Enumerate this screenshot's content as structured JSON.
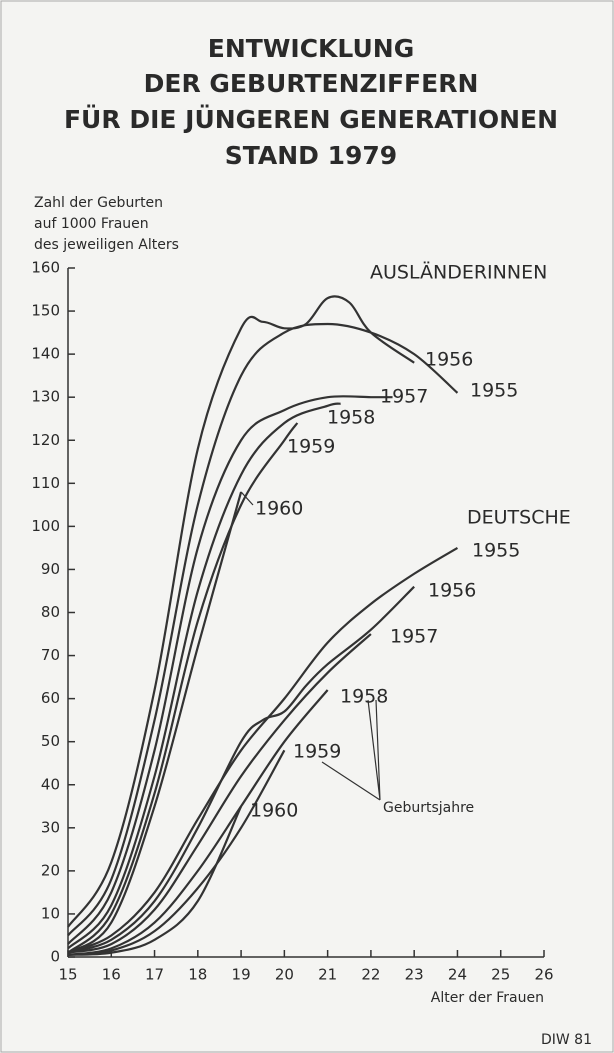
{
  "chart_data": {
    "type": "line",
    "title": [
      "ENTWICKLUNG",
      "DER GEBURTENZIFFERN",
      "FÜR DIE JÜNGEREN GENERATIONEN",
      "STAND 1979"
    ],
    "y_label": [
      "Zahl der Geburten",
      "auf 1000 Frauen",
      "des jeweiligen Alters"
    ],
    "x_label": "Alter der Frauen",
    "xlim": [
      15,
      26
    ],
    "xticks": [
      15,
      16,
      17,
      18,
      19,
      20,
      21,
      22,
      23,
      24,
      25,
      26
    ],
    "ylim": [
      0,
      160
    ],
    "yticks": [
      0,
      10,
      20,
      30,
      40,
      50,
      60,
      70,
      80,
      90,
      100,
      110,
      120,
      130,
      140,
      150,
      160
    ],
    "color": "#333333",
    "groups": [
      {
        "name": "AUSLÄNDERINNEN",
        "series": [
          {
            "name": "1955",
            "x": [
              15,
              16,
              17,
              18,
              19,
              20,
              21,
              22,
              23,
              24
            ],
            "values": [
              5,
              18,
              55,
              105,
              135,
              145,
              147,
              145,
              140,
              131
            ]
          },
          {
            "name": "1956",
            "x": [
              15,
              16,
              17,
              18,
              19,
              19.5,
              20,
              20.5,
              21,
              21.5,
              22,
              23
            ],
            "values": [
              7,
              22,
              62,
              118,
              146,
              147.5,
              146,
              147,
              153,
              152,
              145,
              138
            ]
          },
          {
            "name": "1957",
            "x": [
              15,
              16,
              17,
              18,
              19,
              20,
              21,
              22,
              22.5
            ],
            "values": [
              3,
              15,
              48,
              95,
              120,
              127,
              130,
              130,
              130
            ]
          },
          {
            "name": "1958",
            "x": [
              15,
              16,
              17,
              18,
              19,
              20,
              21,
              21.3
            ],
            "values": [
              2,
              12,
              42,
              85,
              112,
              124,
              128,
              128.5
            ]
          },
          {
            "name": "1959",
            "x": [
              15,
              16,
              17,
              18,
              19,
              20,
              20.3
            ],
            "values": [
              1,
              10,
              38,
              78,
              105,
              120,
              124
            ]
          },
          {
            "name": "1960",
            "x": [
              15,
              16,
              17,
              18,
              19
            ],
            "values": [
              1,
              8,
              35,
              72,
              108
            ]
          }
        ]
      },
      {
        "name": "DEUTSCHE",
        "series": [
          {
            "name": "1955",
            "x": [
              15,
              16,
              17,
              18,
              19,
              20,
              21,
              22,
              23,
              24
            ],
            "values": [
              1,
              5,
              15,
              32,
              48,
              60,
              73,
              82,
              89,
              95
            ]
          },
          {
            "name": "1956",
            "x": [
              15,
              16,
              17,
              18,
              19,
              19.5,
              20,
              20.5,
              21,
              22,
              23
            ],
            "values": [
              1,
              4,
              13,
              30,
              50,
              55,
              57,
              63,
              68,
              76,
              86
            ]
          },
          {
            "name": "1957",
            "x": [
              15,
              16,
              17,
              18,
              19,
              20,
              21,
              22
            ],
            "values": [
              1,
              3,
              11,
              26,
              42,
              55,
              66,
              75
            ]
          },
          {
            "name": "1958",
            "x": [
              15,
              16,
              17,
              18,
              19,
              20,
              21
            ],
            "values": [
              0.5,
              2,
              8,
              20,
              35,
              50,
              62
            ]
          },
          {
            "name": "1959",
            "x": [
              15,
              16,
              17,
              18,
              19,
              20
            ],
            "values": [
              0.5,
              1.5,
              6,
              16,
              30,
              48
            ]
          },
          {
            "name": "1960",
            "x": [
              15,
              16,
              17,
              18,
              19
            ],
            "values": [
              0.5,
              1,
              4,
              13,
              35
            ]
          }
        ]
      }
    ],
    "annotation": "Geburtsjahre",
    "source": "DIW 81"
  }
}
